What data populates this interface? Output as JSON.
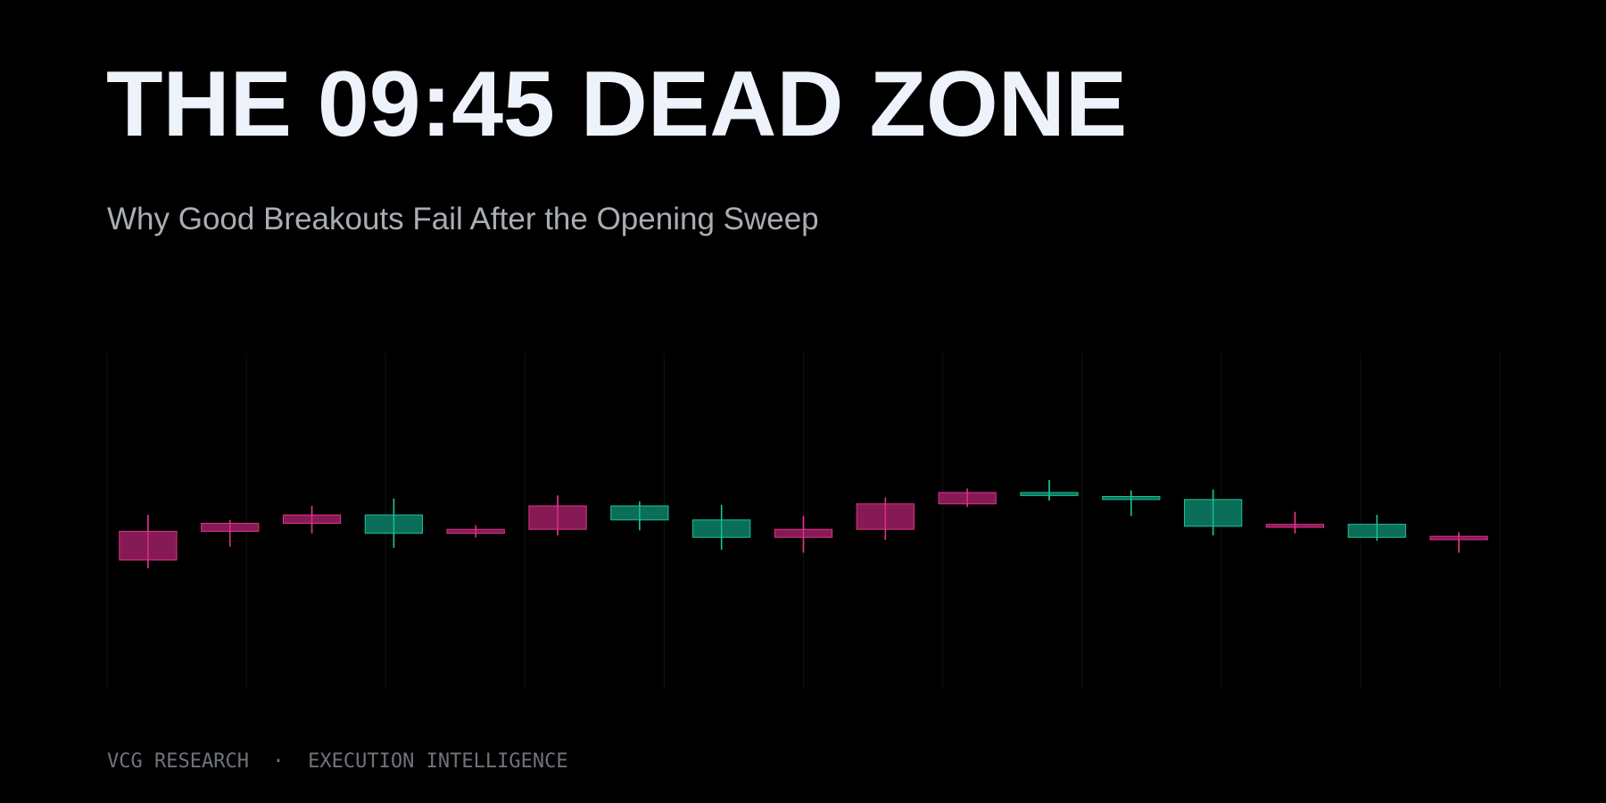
{
  "chart_data": {
    "type": "candlestick",
    "title": "THE 09:45 DEAD ZONE",
    "subtitle": "Why Good Breakouts Fail After the Opening Sweep",
    "footer": "VCG RESEARCH  ·  EXECUTION INTELLIGENCE",
    "open": [
      46.8,
      49.2,
      51.7,
      46.2,
      47.4,
      54.4,
      50.2,
      45.0,
      47.4,
      55.0,
      58.4,
      57.5,
      56.3,
      48.3,
      48.9,
      45.0,
      45.3
    ],
    "high": [
      51.7,
      50.2,
      54.4,
      56.6,
      48.6,
      57.5,
      55.7,
      54.7,
      51.4,
      56.9,
      59.6,
      62.1,
      59.0,
      59.3,
      52.6,
      51.7,
      46.5
    ],
    "low": [
      35.8,
      42.2,
      46.2,
      41.9,
      45.0,
      45.6,
      47.1,
      41.3,
      40.4,
      44.3,
      54.1,
      56.0,
      51.4,
      45.6,
      46.2,
      44.0,
      40.4
    ],
    "close": [
      38.2,
      46.8,
      49.2,
      51.7,
      46.2,
      47.4,
      54.4,
      50.2,
      45.0,
      47.4,
      55.0,
      58.4,
      57.2,
      56.3,
      48.0,
      48.9,
      44.3
    ],
    "ylim": [
      0,
      100
    ],
    "up_color": "#19c39a",
    "up_fill": "#0b6e58",
    "down_color": "#e0338a",
    "down_fill": "#861a55"
  }
}
